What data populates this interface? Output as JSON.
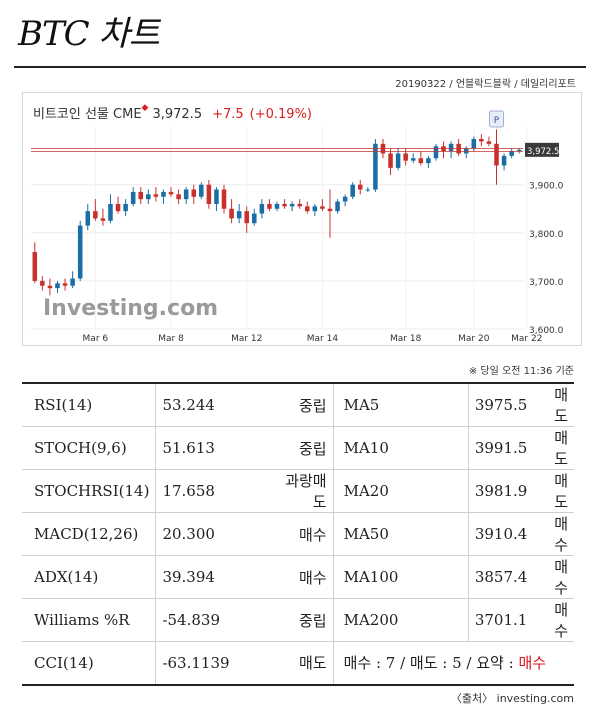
{
  "page": {
    "title": "BTC 차트",
    "byline": "20190322 / 언블락드블락 / 데일리리포트",
    "timestamp": "※ 당일 오전 11:36 기준",
    "source": "〈출처〉 investing.com"
  },
  "chart_header": {
    "name": "비트코인 선물 CME",
    "star": "◆",
    "price": "3,972.5",
    "change": "+7.5",
    "change_pct": "(+0.19%)",
    "badge": "P",
    "watermark": "Investing.com",
    "last_label": "3,972.5"
  },
  "colors": {
    "up": "#1a6ea5",
    "down": "#c9302c",
    "buy": "#e0141e",
    "sell": "#1f3fcf",
    "price_line": "#c9302c"
  },
  "chart_data": {
    "type": "candlestick",
    "x_tick_labels": [
      "Mar 6",
      "Mar 8",
      "Mar 12",
      "Mar 14",
      "Mar 18",
      "Mar 20",
      "Mar 22"
    ],
    "y_tick_labels": [
      "3,600.0",
      "3,700.0",
      "3,800.0",
      "3,900.0"
    ],
    "ylim": [
      3600,
      4020
    ],
    "candles": [
      [
        3760,
        3780,
        3695,
        3700
      ],
      [
        3700,
        3710,
        3680,
        3690
      ],
      [
        3690,
        3705,
        3670,
        3685
      ],
      [
        3685,
        3700,
        3675,
        3695
      ],
      [
        3695,
        3705,
        3680,
        3690
      ],
      [
        3690,
        3720,
        3685,
        3705
      ],
      [
        3705,
        3825,
        3700,
        3815
      ],
      [
        3815,
        3860,
        3805,
        3845
      ],
      [
        3845,
        3870,
        3825,
        3830
      ],
      [
        3830,
        3850,
        3815,
        3825
      ],
      [
        3825,
        3880,
        3820,
        3860
      ],
      [
        3860,
        3875,
        3840,
        3845
      ],
      [
        3845,
        3870,
        3835,
        3860
      ],
      [
        3860,
        3895,
        3855,
        3885
      ],
      [
        3885,
        3895,
        3860,
        3870
      ],
      [
        3870,
        3890,
        3860,
        3880
      ],
      [
        3880,
        3895,
        3865,
        3875
      ],
      [
        3875,
        3890,
        3860,
        3885
      ],
      [
        3885,
        3895,
        3875,
        3880
      ],
      [
        3880,
        3890,
        3860,
        3870
      ],
      [
        3870,
        3895,
        3860,
        3890
      ],
      [
        3890,
        3900,
        3860,
        3875
      ],
      [
        3875,
        3905,
        3870,
        3900
      ],
      [
        3900,
        3910,
        3850,
        3860
      ],
      [
        3860,
        3895,
        3845,
        3890
      ],
      [
        3890,
        3900,
        3840,
        3850
      ],
      [
        3850,
        3870,
        3820,
        3830
      ],
      [
        3830,
        3860,
        3820,
        3845
      ],
      [
        3845,
        3855,
        3800,
        3820
      ],
      [
        3820,
        3850,
        3815,
        3840
      ],
      [
        3840,
        3870,
        3830,
        3860
      ],
      [
        3860,
        3870,
        3845,
        3850
      ],
      [
        3850,
        3865,
        3845,
        3860
      ],
      [
        3860,
        3870,
        3850,
        3855
      ],
      [
        3855,
        3865,
        3845,
        3860
      ],
      [
        3860,
        3870,
        3850,
        3855
      ],
      [
        3855,
        3865,
        3840,
        3845
      ],
      [
        3845,
        3860,
        3835,
        3855
      ],
      [
        3855,
        3870,
        3845,
        3850
      ],
      [
        3850,
        3890,
        3790,
        3845
      ],
      [
        3845,
        3870,
        3840,
        3865
      ],
      [
        3865,
        3880,
        3855,
        3875
      ],
      [
        3875,
        3905,
        3870,
        3900
      ],
      [
        3900,
        3910,
        3880,
        3890
      ],
      [
        3890,
        3895,
        3885,
        3890
      ],
      [
        3890,
        3995,
        3885,
        3985
      ],
      [
        3985,
        3995,
        3955,
        3965
      ],
      [
        3965,
        3975,
        3920,
        3935
      ],
      [
        3935,
        3975,
        3930,
        3965
      ],
      [
        3965,
        3975,
        3940,
        3950
      ],
      [
        3950,
        3965,
        3945,
        3955
      ],
      [
        3955,
        3970,
        3940,
        3945
      ],
      [
        3945,
        3960,
        3935,
        3955
      ],
      [
        3955,
        3985,
        3950,
        3980
      ],
      [
        3980,
        3990,
        3955,
        3970
      ],
      [
        3970,
        3990,
        3955,
        3985
      ],
      [
        3985,
        3995,
        3960,
        3965
      ],
      [
        3965,
        3980,
        3955,
        3975
      ],
      [
        3975,
        4000,
        3970,
        3995
      ],
      [
        3995,
        4005,
        3980,
        3990
      ],
      [
        3990,
        4000,
        3980,
        3985
      ],
      [
        3985,
        4015,
        3900,
        3940
      ],
      [
        3940,
        3965,
        3930,
        3960
      ],
      [
        3960,
        3975,
        3955,
        3970
      ],
      [
        3970,
        3975,
        3965,
        3972.5
      ]
    ],
    "x_tick_candle_index": [
      8,
      18,
      28,
      38,
      49,
      58,
      65
    ],
    "price_line": 3972.5
  },
  "indicators": [
    {
      "name": "RSI(14)",
      "value": "53.244",
      "signal": "중립",
      "tone": "neutral",
      "ma": "MA5",
      "ma_value": "3975.5",
      "ma_signal": "매도",
      "ma_tone": "sell"
    },
    {
      "name": "STOCH(9,6)",
      "value": "51.613",
      "signal": "중립",
      "tone": "neutral",
      "ma": "MA10",
      "ma_value": "3991.5",
      "ma_signal": "매도",
      "ma_tone": "sell"
    },
    {
      "name": "STOCHRSI(14)",
      "value": "17.658",
      "signal": "과랑매도",
      "tone": "neutral",
      "ma": "MA20",
      "ma_value": "3981.9",
      "ma_signal": "매도",
      "ma_tone": "sell"
    },
    {
      "name": "MACD(12,26)",
      "value": "20.300",
      "signal": "매수",
      "tone": "buy",
      "ma": "MA50",
      "ma_value": "3910.4",
      "ma_signal": "매수",
      "ma_tone": "buy"
    },
    {
      "name": "ADX(14)",
      "value": "39.394",
      "signal": "매수",
      "tone": "buy",
      "ma": "MA100",
      "ma_value": "3857.4",
      "ma_signal": "매수",
      "ma_tone": "buy"
    },
    {
      "name": "Williams %R",
      "value": "-54.839",
      "signal": "중립",
      "tone": "neutral",
      "ma": "MA200",
      "ma_value": "3701.1",
      "ma_signal": "매수",
      "ma_tone": "buy"
    }
  ],
  "last_row": {
    "name": "CCI(14)",
    "value": "-63.1139",
    "signal": "매도",
    "tone": "sell",
    "summary_prefix": "매수 : 7 / 매도 : 5 / 요약 : ",
    "summary_result": "매수",
    "summary_tone": "buy"
  }
}
